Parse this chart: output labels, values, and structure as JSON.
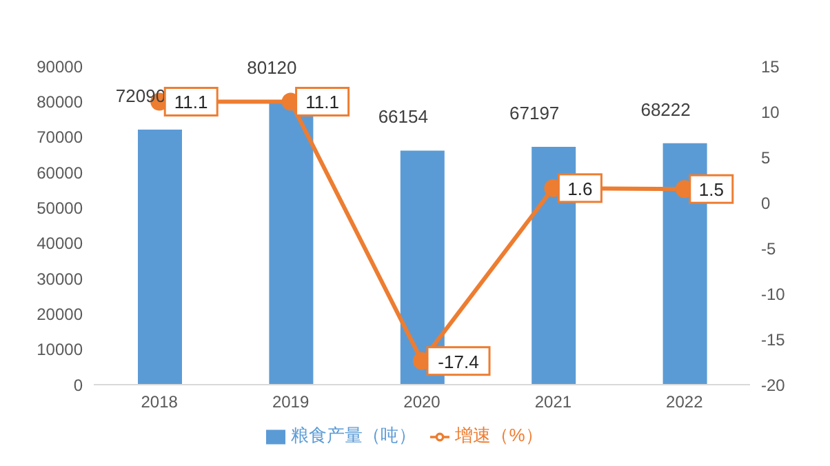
{
  "chart_data": {
    "type": "bar",
    "categories": [
      "2018",
      "2019",
      "2020",
      "2021",
      "2022"
    ],
    "series": [
      {
        "name": "粮食产量（吨）",
        "color": "#5b9bd5",
        "values": [
          72090,
          80120,
          66154,
          67197,
          68222
        ]
      },
      {
        "name": "增速（%）",
        "type": "line",
        "axis": "y2",
        "color": "#ed7d31",
        "values": [
          11.1,
          11.1,
          -17.4,
          1.6,
          1.5
        ]
      }
    ],
    "ylim": [
      0,
      90000
    ],
    "yticks": [
      0,
      10000,
      20000,
      30000,
      40000,
      50000,
      60000,
      70000,
      80000,
      90000
    ],
    "y2lim": [
      -20,
      15
    ],
    "y2ticks": [
      -20,
      -15,
      -10,
      -5,
      0,
      5,
      10,
      15
    ],
    "data_labels": true,
    "legend": "bottom",
    "grid": false,
    "marker": "circle",
    "line_style": "solid"
  }
}
